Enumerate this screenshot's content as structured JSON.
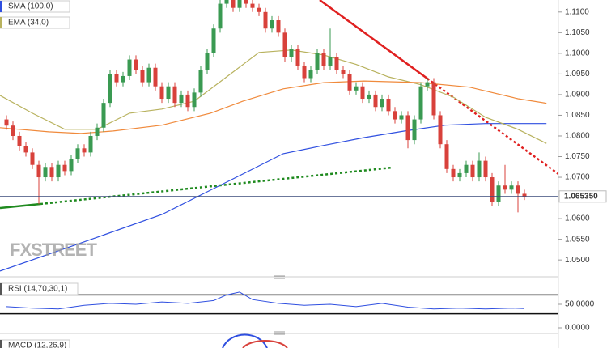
{
  "chart_data": [
    {
      "type": "candlestick",
      "up_color": "#3a9a52",
      "down_color": "#d8413b",
      "open": [
        1.084,
        1.0825,
        1.08,
        1.0775,
        1.076,
        1.073,
        1.07,
        1.0725,
        1.07,
        1.073,
        1.0715,
        1.0745,
        1.077,
        1.076,
        1.08,
        1.082,
        1.088,
        1.095,
        1.093,
        1.0945,
        1.0985,
        1.096,
        1.093,
        1.0965,
        1.092,
        1.089,
        1.092,
        1.088,
        1.09,
        1.087,
        1.0905,
        1.096,
        1.1,
        1.106,
        1.112,
        1.114,
        1.111,
        1.113,
        1.112,
        1.111,
        1.11,
        1.106,
        1.108,
        1.105,
        1.099,
        1.101,
        1.097,
        1.094,
        1.096,
        1.1,
        1.097,
        1.099,
        1.096,
        1.095,
        1.091,
        1.092,
        1.089,
        1.09,
        1.087,
        1.089,
        1.086,
        1.084,
        1.085,
        1.079,
        1.084,
        1.092,
        1.093,
        1.085,
        1.078,
        1.072,
        1.07,
        1.071,
        1.073,
        1.07,
        1.074,
        1.07,
        1.064,
        1.068,
        1.067,
        1.068,
        1.066
      ],
      "high": [
        1.085,
        1.0835,
        1.081,
        1.0785,
        1.077,
        1.074,
        1.0735,
        1.0735,
        1.074,
        1.074,
        1.0755,
        1.078,
        1.078,
        1.081,
        1.083,
        1.089,
        1.096,
        1.096,
        1.0955,
        1.0995,
        1.0995,
        1.097,
        1.0975,
        1.0975,
        1.093,
        1.093,
        1.093,
        1.091,
        1.091,
        1.0915,
        1.097,
        1.101,
        1.107,
        1.113,
        1.115,
        1.115,
        1.114,
        1.114,
        1.113,
        1.112,
        1.111,
        1.109,
        1.109,
        1.106,
        1.102,
        1.102,
        1.098,
        1.097,
        1.101,
        1.101,
        1.106,
        1.1,
        1.097,
        1.096,
        1.093,
        1.093,
        1.091,
        1.091,
        1.09,
        1.09,
        1.087,
        1.086,
        1.086,
        1.085,
        1.093,
        1.094,
        1.094,
        1.086,
        1.079,
        1.073,
        1.072,
        1.074,
        1.074,
        1.076,
        1.075,
        1.071,
        1.069,
        1.073,
        1.069,
        1.069,
        1.067
      ],
      "low": [
        1.0815,
        1.079,
        1.0765,
        1.075,
        1.072,
        1.0635,
        1.069,
        1.069,
        1.069,
        1.0705,
        1.0705,
        1.0735,
        1.075,
        1.075,
        1.079,
        1.081,
        1.087,
        1.092,
        1.092,
        1.0935,
        1.095,
        1.092,
        1.092,
        1.091,
        1.088,
        1.088,
        1.087,
        1.087,
        1.086,
        1.086,
        1.0895,
        1.095,
        1.099,
        1.105,
        1.111,
        1.11,
        1.11,
        1.111,
        1.11,
        1.109,
        1.105,
        1.105,
        1.104,
        1.098,
        1.098,
        1.096,
        1.093,
        1.093,
        1.095,
        1.096,
        1.096,
        1.095,
        1.094,
        1.09,
        1.09,
        1.088,
        1.088,
        1.086,
        1.086,
        1.085,
        1.083,
        1.083,
        1.077,
        1.078,
        1.083,
        1.091,
        1.084,
        1.077,
        1.071,
        1.069,
        1.069,
        1.07,
        1.069,
        1.069,
        1.069,
        1.063,
        1.063,
        1.066,
        1.066,
        1.0615,
        1.0645
      ],
      "close": [
        1.0825,
        1.08,
        1.0775,
        1.076,
        1.073,
        1.07,
        1.0725,
        1.07,
        1.073,
        1.0715,
        1.0745,
        1.077,
        1.076,
        1.08,
        1.082,
        1.088,
        1.095,
        1.093,
        1.0945,
        1.0985,
        1.096,
        1.093,
        1.0965,
        1.092,
        1.089,
        1.092,
        1.088,
        1.09,
        1.087,
        1.0905,
        1.096,
        1.1,
        1.106,
        1.112,
        1.114,
        1.111,
        1.113,
        1.112,
        1.111,
        1.11,
        1.106,
        1.108,
        1.105,
        1.099,
        1.101,
        1.097,
        1.094,
        1.096,
        1.1,
        1.097,
        1.099,
        1.096,
        1.095,
        1.091,
        1.092,
        1.089,
        1.09,
        1.087,
        1.089,
        1.086,
        1.084,
        1.085,
        1.079,
        1.084,
        1.092,
        1.093,
        1.085,
        1.078,
        1.072,
        1.07,
        1.071,
        1.073,
        1.07,
        1.074,
        1.07,
        1.064,
        1.068,
        1.067,
        1.068,
        1.066,
        1.0653
      ],
      "ylim": [
        1.0467,
        1.1129
      ],
      "yticks": [
        {
          "value": 1.11,
          "label": "1.1100"
        },
        {
          "value": 1.105,
          "label": "1.1050"
        },
        {
          "value": 1.1,
          "label": "1.1000"
        },
        {
          "value": 1.095,
          "label": "1.0950"
        },
        {
          "value": 1.09,
          "label": "1.0900"
        },
        {
          "value": 1.085,
          "label": "1.0850"
        },
        {
          "value": 1.08,
          "label": "1.0800"
        },
        {
          "value": 1.075,
          "label": "1.0750"
        },
        {
          "value": 1.07,
          "label": "1.0700"
        },
        {
          "value": 1.06,
          "label": "1.0600"
        },
        {
          "value": 1.055,
          "label": "1.0550"
        },
        {
          "value": 1.05,
          "label": "1.0500"
        }
      ],
      "last_price": {
        "value": 1.06535,
        "label": "1.065350"
      },
      "overlays": [
        {
          "name": "SMA (100,0)",
          "color": "#2f4fe0",
          "x": [
            -1,
            11.5,
            24,
            36.5,
            42.75,
            49,
            55.25,
            61.5,
            67.75,
            74,
            83.4
          ],
          "values": [
            1.0473,
            1.0541,
            1.061,
            1.0708,
            1.0757,
            1.0777,
            1.0796,
            1.0812,
            1.0826,
            1.083,
            1.083
          ]
        },
        {
          "name": "EMA (34,0)",
          "color": "#b8b25e",
          "x": [
            -1,
            4,
            9,
            14,
            19,
            24,
            29,
            34,
            39,
            44,
            49,
            54,
            59,
            64,
            69,
            74,
            79,
            83.4
          ],
          "values": [
            1.0898,
            1.0855,
            1.0816,
            1.0816,
            1.0855,
            1.0865,
            1.0884,
            1.0943,
            1.1002,
            1.1008,
            1.0996,
            1.0973,
            1.0943,
            1.0924,
            1.0894,
            1.0845,
            1.0816,
            1.0782
          ]
        },
        {
          "color": "#f08a3c",
          "x": [
            -1,
            6.5,
            11.5,
            16.5,
            24,
            31.5,
            36.5,
            42.75,
            49,
            55.25,
            64,
            71.5,
            79,
            83.4
          ],
          "values": [
            1.082,
            1.081,
            1.0806,
            1.0812,
            1.0826,
            1.0855,
            1.0884,
            1.0914,
            1.0929,
            1.0933,
            1.0929,
            1.0918,
            1.089,
            1.0879
          ]
        }
      ],
      "watermark": "FXSTREET"
    },
    {
      "type": "line",
      "title": "RSI (14,70,30,1)",
      "color": "#2f4fe0",
      "x": [
        0,
        4,
        8,
        12,
        16,
        20,
        24,
        28,
        32,
        34,
        36,
        38,
        42,
        46,
        50,
        54,
        58,
        62,
        66,
        70,
        74,
        78,
        80
      ],
      "values": [
        45,
        42,
        40,
        48,
        52,
        50,
        55,
        52,
        58,
        70,
        76,
        60,
        52,
        48,
        50,
        45,
        52,
        44,
        40,
        42,
        40,
        42,
        41
      ],
      "ylim": [
        -8.6,
        98.3
      ],
      "yticks": [
        {
          "value": 50,
          "label": "50.0000"
        },
        {
          "value": 0,
          "label": "0.0000"
        }
      ],
      "levels": [
        70,
        30
      ]
    },
    {
      "type": "macd",
      "title": "MACD (12,26,9)"
    }
  ]
}
